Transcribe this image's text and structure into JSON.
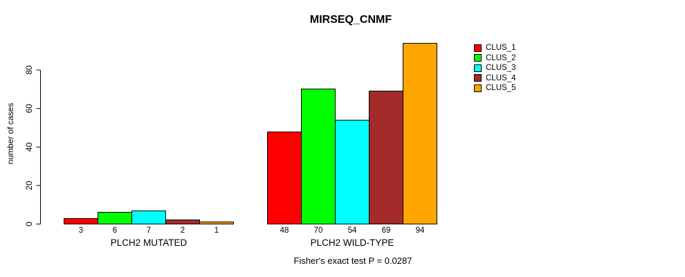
{
  "chart_data": {
    "type": "bar",
    "title": "MIRSEQ_CNMF",
    "ylabel": "number of cases",
    "xlabel": "",
    "footnote": "Fisher's exact test P = 0.0287",
    "yticks": [
      0,
      20,
      40,
      60,
      80
    ],
    "ylim": [
      0,
      94
    ],
    "grid": false,
    "legend_position": "top-right",
    "categories": [
      "PLCH2 MUTATED",
      "PLCH2 WILD-TYPE"
    ],
    "series": [
      {
        "name": "CLUS_1",
        "color": "#ff0000",
        "values": [
          3,
          48
        ]
      },
      {
        "name": "CLUS_2",
        "color": "#00ff00",
        "values": [
          6,
          70
        ]
      },
      {
        "name": "CLUS_3",
        "color": "#00ffff",
        "values": [
          7,
          54
        ]
      },
      {
        "name": "CLUS_4",
        "color": "#a52a2a",
        "values": [
          2,
          69
        ]
      },
      {
        "name": "CLUS_5",
        "color": "#ffa500",
        "values": [
          1,
          94
        ]
      }
    ],
    "bar_value_labels_shown": true,
    "axis_color": "#000000",
    "background_color": "#ffffff"
  }
}
